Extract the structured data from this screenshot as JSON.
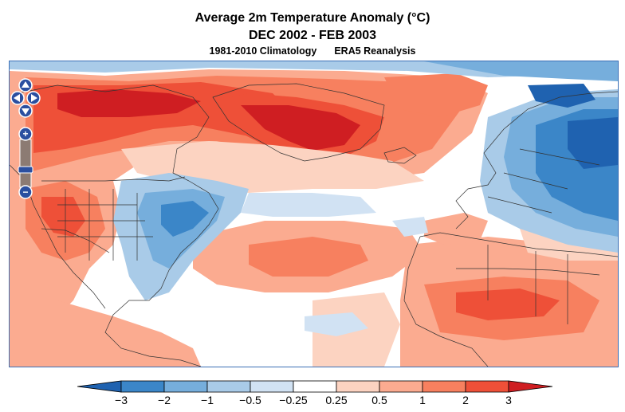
{
  "title": {
    "line1": "Average 2m Temperature Anomaly (°C)",
    "line2": "DEC 2002 - FEB 2003",
    "climatology": "1981-2010 Climatology",
    "dataset": "ERA5 Reanalysis"
  },
  "map_controls": {
    "pan_up": "pan-up",
    "pan_left": "pan-left",
    "pan_right": "pan-right",
    "pan_down": "pan-down",
    "zoom_in": "+",
    "zoom_out": "−"
  },
  "colors": {
    "cold_3": "#1f62b0",
    "cold_2": "#3b86c8",
    "cold_1": "#76aedc",
    "cold_05": "#a9cbe8",
    "cold_025": "#d1e2f3",
    "neutral": "#ffffff",
    "warm_025": "#fcd3c1",
    "warm_05": "#fbab90",
    "warm_1": "#f7805f",
    "warm_2": "#ee5038",
    "warm_3": "#cf1e22",
    "boundary": "#333333"
  },
  "colorbar": {
    "tick_labels": [
      "−3",
      "−2",
      "−1",
      "−0.5",
      "−0.25",
      "0.25",
      "0.5",
      "1",
      "2",
      "3"
    ],
    "bins": [
      "cold_3",
      "cold_2",
      "cold_1",
      "cold_05",
      "cold_025",
      "neutral",
      "warm_025",
      "warm_05",
      "warm_1",
      "warm_2",
      "warm_3"
    ]
  }
}
